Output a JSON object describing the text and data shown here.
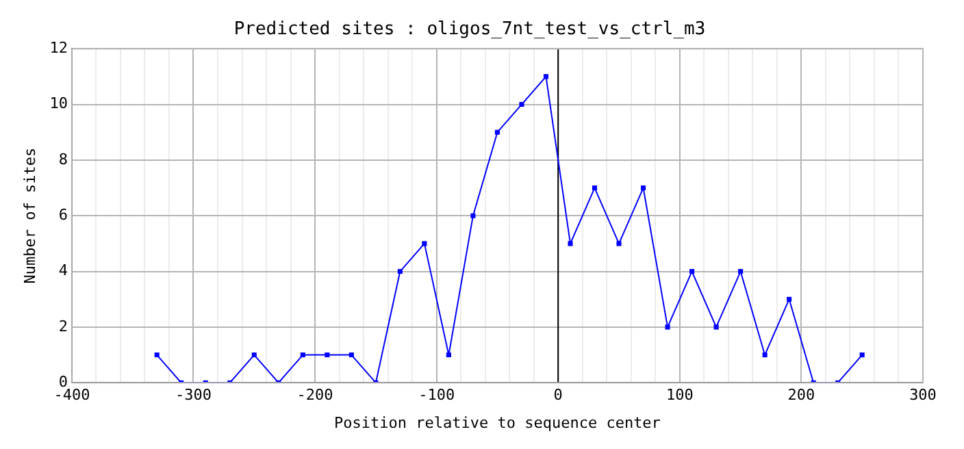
{
  "chart_data": {
    "type": "line",
    "title": "Predicted sites : oligos_7nt_test_vs_ctrl_m3",
    "xlabel": "Position relative to sequence center",
    "ylabel": "Number of sites",
    "x": [
      -330,
      -310,
      -290,
      -270,
      -250,
      -230,
      -210,
      -190,
      -170,
      -150,
      -130,
      -110,
      -90,
      -70,
      -50,
      -30,
      -10,
      10,
      30,
      50,
      70,
      90,
      110,
      130,
      150,
      170,
      190,
      210,
      230,
      250
    ],
    "series": [
      {
        "color": "#0000ff",
        "values": [
          1,
          0,
          0,
          0,
          1,
          0,
          1,
          1,
          1,
          0,
          4,
          5,
          1,
          6,
          9,
          10,
          11,
          5,
          7,
          5,
          7,
          2,
          4,
          2,
          4,
          1,
          3,
          0,
          0,
          1
        ]
      }
    ],
    "xlim": [
      -400,
      300
    ],
    "xticks": [
      -400,
      {
        "value": -380,
        "label": null
      },
      {
        "value": -360,
        "label": null
      },
      {
        "value": -340,
        "label": null
      },
      {
        "value": -320,
        "label": null
      },
      -300,
      {
        "value": -280,
        "label": null
      },
      {
        "value": -260,
        "label": null
      },
      {
        "value": -240,
        "label": null
      },
      {
        "value": -220,
        "label": null
      },
      -200,
      {
        "value": -180,
        "label": null
      },
      {
        "value": -160,
        "label": null
      },
      {
        "value": -140,
        "label": null
      },
      {
        "value": -120,
        "label": null
      },
      -100,
      {
        "value": -80,
        "label": null
      },
      {
        "value": -60,
        "label": null
      },
      {
        "value": -40,
        "label": null
      },
      {
        "value": -20,
        "label": null
      },
      0,
      {
        "value": 20,
        "label": null
      },
      {
        "value": 40,
        "label": null
      },
      {
        "value": 60,
        "label": null
      },
      {
        "value": 80,
        "label": null
      },
      100,
      {
        "value": 120,
        "label": null
      },
      {
        "value": 140,
        "label": null
      },
      {
        "value": 160,
        "label": null
      },
      {
        "value": 180,
        "label": null
      },
      200,
      {
        "value": 220,
        "label": null
      },
      {
        "value": 240,
        "label": null
      },
      {
        "value": 260,
        "label": null
      },
      {
        "value": 280,
        "label": null
      },
      300
    ],
    "ylim": [
      0,
      12
    ],
    "yticks": [
      0,
      2,
      4,
      6,
      8,
      10,
      12
    ],
    "grid": true,
    "marker": "square",
    "line_style": "solid",
    "ref_lines": [
      {
        "axis": "x",
        "value": 0,
        "color": "#000000"
      }
    ]
  }
}
